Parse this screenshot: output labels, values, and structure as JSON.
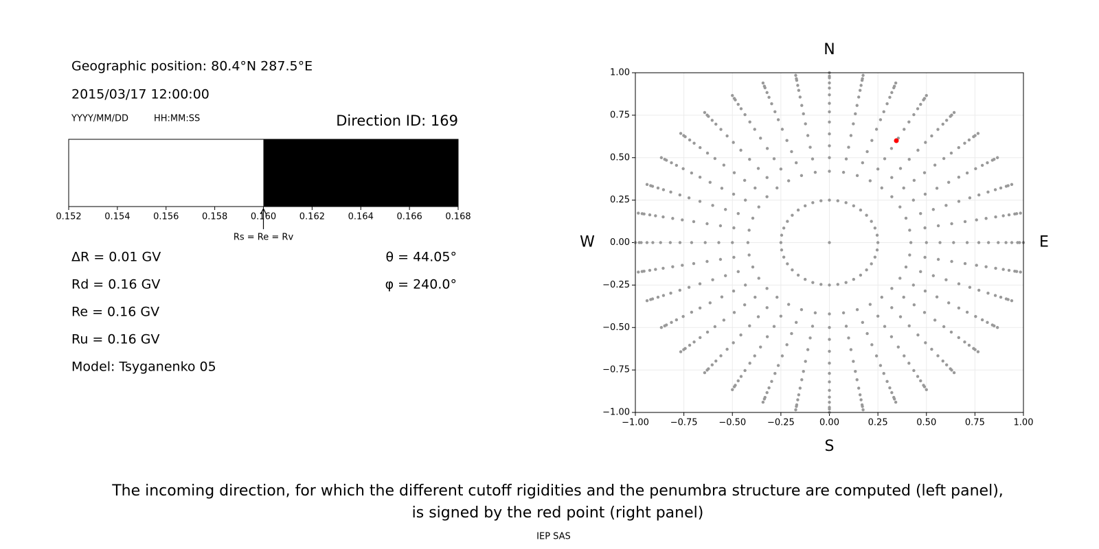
{
  "info": {
    "geo": "Geographic position: 80.4°N 287.5°E",
    "datetime": "2015/03/17 12:00:00",
    "date_format": "YYYY/MM/DD",
    "time_format": "HH:MM:SS",
    "direction": "Direction ID: 169",
    "dR": "ΔR = 0.01 GV",
    "Rd": "Rd = 0.16 GV",
    "Re": "Re = 0.16 GV",
    "Ru": "Ru = 0.16 GV",
    "model": "Model: Tsyganenko 05",
    "theta": "θ = 44.05°",
    "phi": "φ = 240.0°"
  },
  "chart_data": [
    {
      "type": "range-bar",
      "xlim": [
        0.152,
        0.168
      ],
      "xticks": [
        0.152,
        0.154,
        0.156,
        0.158,
        {
          "value": 0.16,
          "label": "0.160"
        },
        0.162,
        0.164,
        0.166,
        0.168
      ],
      "segments": [
        {
          "from": 0.152,
          "to": 0.16,
          "color": "#ffffff"
        },
        {
          "from": 0.16,
          "to": 0.168,
          "color": "#000000"
        }
      ],
      "annotation": {
        "value": 0.16,
        "label": "Rs = Re = Rv"
      }
    },
    {
      "type": "scatter",
      "xlim": [
        -1,
        1
      ],
      "ylim": [
        -1,
        1
      ],
      "xticks": [
        {
          "value": -1,
          "label": "−1.00"
        },
        {
          "value": -0.75,
          "label": "−0.75"
        },
        {
          "value": -0.5,
          "label": "−0.50"
        },
        {
          "value": -0.25,
          "label": "−0.25"
        },
        {
          "value": 0,
          "label": "0.00"
        },
        {
          "value": 0.25,
          "label": "0.25"
        },
        {
          "value": 0.5,
          "label": "0.50"
        },
        {
          "value": 0.75,
          "label": "0.75"
        },
        {
          "value": 1,
          "label": "1.00"
        }
      ],
      "yticks": [
        {
          "value": -1,
          "label": "−1.00"
        },
        {
          "value": -0.75,
          "label": "−0.75"
        },
        {
          "value": -0.5,
          "label": "−0.50"
        },
        {
          "value": -0.25,
          "label": "−0.25"
        },
        {
          "value": 0,
          "label": "0.00"
        },
        {
          "value": 0.25,
          "label": "0.25"
        },
        {
          "value": 0.5,
          "label": "0.50"
        },
        {
          "value": 0.75,
          "label": "0.75"
        },
        {
          "value": 1,
          "label": "1.00"
        }
      ],
      "grid": true,
      "compass": {
        "N": "N",
        "S": "S",
        "W": "W",
        "E": "E"
      },
      "series": [
        {
          "color": "#999999",
          "x": [
            0
          ],
          "y": [
            0
          ]
        },
        {
          "color": "#999999",
          "radius": [
            0.25,
            0.42,
            0.5,
            0.57,
            0.64,
            0.71,
            0.77,
            0.82,
            0.87,
            0.91,
            0.94,
            0.97,
            0.98,
            1
          ],
          "azimuth": [
            0,
            10,
            20,
            30,
            40,
            50,
            60,
            70,
            80,
            90,
            100,
            110,
            120,
            130,
            140,
            150,
            160,
            170,
            180,
            190,
            200,
            210,
            220,
            230,
            240,
            250,
            260,
            270,
            280,
            290,
            300,
            310,
            320,
            330,
            340,
            350
          ]
        },
        {
          "color": "#ff0000",
          "x": [
            0.345
          ],
          "y": [
            0.6
          ]
        }
      ]
    }
  ],
  "caption": [
    "The incoming direction, for which the different cutoff rigidities and the penumbra structure are computed (left panel),",
    "is signed by the red point (right panel)"
  ],
  "footer": "IEP SAS"
}
